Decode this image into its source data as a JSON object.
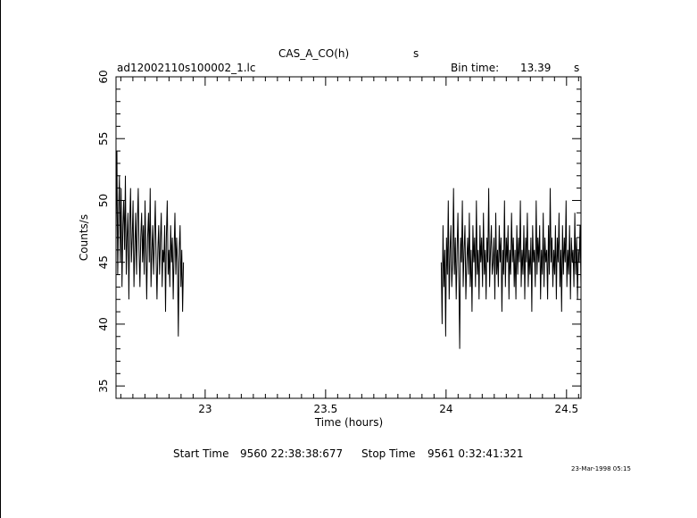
{
  "header": {
    "object": "CAS_A_CO(h)",
    "unit_s": "s",
    "file": "ad12002110s100002_1.lc",
    "bin_label": "Bin time:",
    "bin_value": "13.39",
    "bin_unit": "s"
  },
  "footer": {
    "start_label": "Start Time",
    "start_value": "9560 22:38:38:677",
    "stop_label": "Stop Time",
    "stop_value": "9561  0:32:41:321",
    "stamp": "23-Mar-1998 05:15"
  },
  "chart_data": {
    "type": "line",
    "xlabel": "Time (hours)",
    "ylabel": "Counts/s",
    "xlim": [
      22.63,
      24.56
    ],
    "ylim": [
      34,
      60
    ],
    "xticks": [
      23,
      23.5,
      24,
      24.5
    ],
    "xtick_labels": [
      "23",
      "23.5",
      "24",
      "24.5"
    ],
    "yticks": [
      35,
      40,
      45,
      50,
      55,
      60
    ],
    "ytick_labels": [
      "35",
      "40",
      "45",
      "50",
      "55",
      "60"
    ],
    "series": [
      {
        "segments": [
          {
            "x_range": [
              22.63,
              22.91
            ],
            "values": [
              47,
              54,
              44,
              49,
              52,
              45,
              51,
              43,
              48,
              50,
              46,
              52,
              44,
              47,
              49,
              42,
              48,
              51,
              45,
              47,
              50,
              43,
              46,
              49,
              44,
              48,
              51,
              46,
              43,
              47,
              49,
              45,
              48,
              44,
              50,
              46,
              42,
              47,
              49,
              45,
              51,
              43,
              46,
              48,
              44,
              47,
              50,
              45,
              42,
              46,
              48,
              44,
              47,
              49,
              43,
              46,
              45,
              48,
              41,
              47,
              50,
              44,
              46,
              43,
              48,
              45,
              47,
              42,
              46,
              49,
              44,
              47,
              45,
              39,
              46,
              48,
              43,
              46,
              41,
              45
            ]
          },
          {
            "x_range": [
              23.98,
              24.56
            ],
            "values": [
              45,
              40,
              48,
              43,
              46,
              39,
              47,
              44,
              50,
              42,
              46,
              48,
              43,
              45,
              51,
              44,
              47,
              42,
              46,
              49,
              44,
              38,
              47,
              45,
              50,
              43,
              46,
              48,
              42,
              45,
              47,
              44,
              49,
              43,
              46,
              41,
              48,
              45,
              47,
              43,
              50,
              44,
              46,
              42,
              48,
              45,
              47,
              43,
              49,
              44,
              46,
              42,
              47,
              45,
              51,
              43,
              46,
              48,
              44,
              45,
              47,
              42,
              49,
              44,
              46,
              43,
              48,
              45,
              47,
              41,
              46,
              44,
              50,
              43,
              47,
              45,
              48,
              42,
              46,
              44,
              49,
              45,
              47,
              43,
              46,
              42,
              48,
              44,
              47,
              45,
              50,
              43,
              46,
              44,
              48,
              42,
              47,
              45,
              49,
              43,
              46,
              44,
              47,
              41,
              48,
              45,
              46,
              43,
              50,
              44,
              47,
              45,
              48,
              42,
              46,
              44,
              49,
              43,
              47,
              45,
              46,
              42,
              48,
              44,
              51,
              45,
              47,
              43,
              46,
              44,
              48,
              42,
              47,
              45,
              49,
              43,
              46,
              41,
              48,
              44,
              47,
              45,
              50,
              43,
              46,
              44,
              48,
              42,
              47,
              45,
              46,
              43,
              49,
              44,
              47,
              42,
              46,
              45,
              48,
              43
            ]
          }
        ]
      }
    ],
    "grid": false
  }
}
